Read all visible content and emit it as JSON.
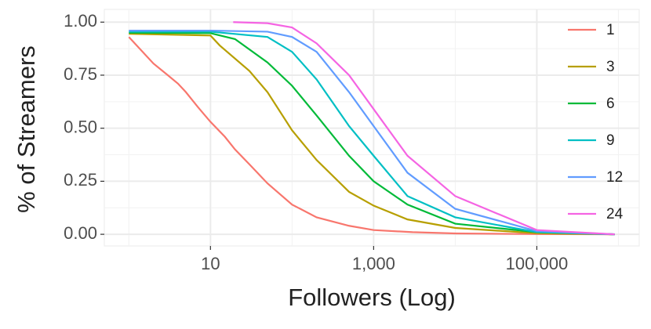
{
  "chart_data": {
    "type": "line",
    "x_label": "Followers (Log)",
    "y_label": "% of Streamers",
    "xscale": "log",
    "xlim": [
      0.5,
      1800000
    ],
    "ylim": [
      -0.055,
      1.06
    ],
    "xticks": [
      {
        "value": 10,
        "label": "10"
      },
      {
        "value": 1000,
        "label": "1,000"
      },
      {
        "value": 100000,
        "label": "100,000"
      }
    ],
    "yticks": [
      {
        "value": 0,
        "label": "0.00"
      },
      {
        "value": 0.25,
        "label": "0.25"
      },
      {
        "value": 0.5,
        "label": "0.50"
      },
      {
        "value": 0.75,
        "label": "0.75"
      },
      {
        "value": 1,
        "label": "1.00"
      }
    ],
    "grid": true,
    "legend": "right",
    "series": [
      {
        "name": "1",
        "color": "#F8766D",
        "x": [
          1,
          2,
          3,
          4,
          5,
          7,
          10,
          15,
          20,
          30,
          50,
          100,
          200,
          500,
          1000,
          3000,
          10000,
          100000,
          900000
        ],
        "values": [
          0.93,
          0.805,
          0.75,
          0.71,
          0.67,
          0.6,
          0.53,
          0.46,
          0.4,
          0.33,
          0.24,
          0.14,
          0.08,
          0.04,
          0.02,
          0.01,
          0.004,
          0.001,
          0
        ]
      },
      {
        "name": "3",
        "color": "#B79F00",
        "x": [
          1,
          10,
          13,
          30,
          50,
          100,
          200,
          500,
          1000,
          2600,
          10000,
          100000,
          900000
        ],
        "values": [
          0.945,
          0.937,
          0.89,
          0.77,
          0.67,
          0.49,
          0.35,
          0.2,
          0.135,
          0.07,
          0.03,
          0.005,
          0
        ]
      },
      {
        "name": "6",
        "color": "#00BA38",
        "x": [
          1,
          10,
          20,
          50,
          100,
          200,
          500,
          1000,
          2600,
          10000,
          100000,
          900000
        ],
        "values": [
          0.95,
          0.948,
          0.92,
          0.81,
          0.7,
          0.56,
          0.37,
          0.25,
          0.14,
          0.05,
          0.01,
          0
        ]
      },
      {
        "name": "9",
        "color": "#00BFC4",
        "x": [
          1,
          10,
          50,
          100,
          200,
          500,
          1000,
          2600,
          10000,
          100000,
          900000
        ],
        "values": [
          0.955,
          0.955,
          0.93,
          0.86,
          0.73,
          0.51,
          0.37,
          0.18,
          0.08,
          0.01,
          0
        ]
      },
      {
        "name": "12",
        "color": "#619CFF",
        "x": [
          1,
          10,
          50,
          100,
          200,
          500,
          1000,
          2600,
          10000,
          100000,
          900000
        ],
        "values": [
          0.96,
          0.96,
          0.955,
          0.93,
          0.86,
          0.67,
          0.51,
          0.29,
          0.12,
          0.015,
          0
        ]
      },
      {
        "name": "24",
        "color": "#F564E3",
        "x": [
          19,
          50,
          100,
          200,
          500,
          1000,
          2600,
          10000,
          100000,
          900000
        ],
        "values": [
          1.0,
          0.995,
          0.975,
          0.9,
          0.75,
          0.59,
          0.37,
          0.18,
          0.02,
          0
        ]
      }
    ]
  }
}
